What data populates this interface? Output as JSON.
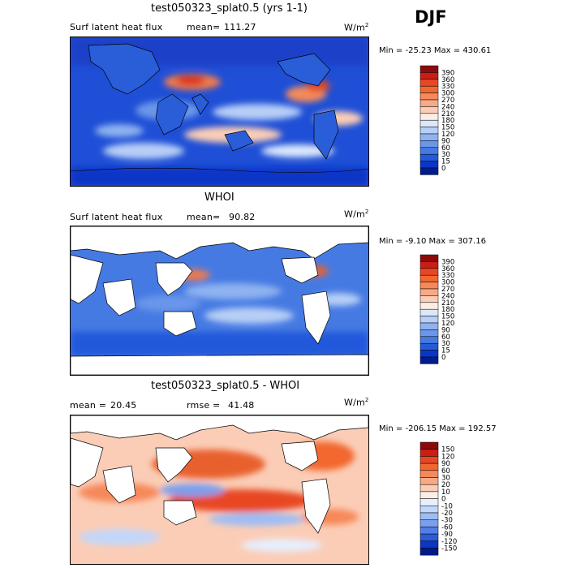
{
  "season": "DJF",
  "panels": [
    {
      "title": "test050323_splat0.5 (yrs 1-1)",
      "left_label": "Surf latent heat flux",
      "stat_label": "mean=",
      "stat_value": "111.27",
      "units": "W/m",
      "units_exp": "2",
      "minmax": "Min = -25.23 Max = 430.61"
    },
    {
      "title": "WHOI",
      "left_label": "Surf latent heat flux",
      "stat_label": "mean=",
      "stat_value": "90.82",
      "units": "W/m",
      "units_exp": "2",
      "minmax": "Min = -9.10 Max = 307.16"
    },
    {
      "title": "test050323_splat0.5 - WHOI",
      "left_label": "mean =",
      "left_value": "20.45",
      "stat_label": "rmse =",
      "stat_value": "41.48",
      "units": "W/m",
      "units_exp": "2",
      "minmax": "Min = -206.15 Max = 192.57"
    }
  ],
  "chart_data": [
    {
      "type": "heatmap",
      "title": "test050323_splat0.5 (yrs 1-1)",
      "variable": "Surf latent heat flux",
      "mean": 111.27,
      "min": -25.23,
      "max": 430.61,
      "units": "W/m2",
      "colorbar_levels": [
        "390",
        "360",
        "330",
        "300",
        "270",
        "240",
        "210",
        "180",
        "150",
        "120",
        "90",
        "60",
        "30",
        "15",
        "0"
      ],
      "colorbar_colors": [
        "#8b0a0a",
        "#c81e14",
        "#e84624",
        "#f2672f",
        "#f7885a",
        "#f9a986",
        "#fbcdb6",
        "#fdeee5",
        "#dbe8fb",
        "#b7cff6",
        "#8fb3f0",
        "#6b96ea",
        "#467ae3",
        "#2459db",
        "#0a36c8",
        "#001c8f"
      ]
    },
    {
      "type": "heatmap",
      "title": "WHOI",
      "variable": "Surf latent heat flux",
      "mean": 90.82,
      "min": -9.1,
      "max": 307.16,
      "units": "W/m2",
      "colorbar_levels": [
        "390",
        "360",
        "330",
        "300",
        "270",
        "240",
        "210",
        "180",
        "150",
        "120",
        "90",
        "60",
        "30",
        "15",
        "0"
      ],
      "colorbar_colors": [
        "#8b0a0a",
        "#c81e14",
        "#e84624",
        "#f2672f",
        "#f7885a",
        "#f9a986",
        "#fbcdb6",
        "#fdeee5",
        "#dbe8fb",
        "#b7cff6",
        "#8fb3f0",
        "#6b96ea",
        "#467ae3",
        "#2459db",
        "#0a36c8",
        "#001c8f"
      ]
    },
    {
      "type": "heatmap",
      "title": "test050323_splat0.5 - WHOI",
      "mean": 20.45,
      "rmse": 41.48,
      "min": -206.15,
      "max": 192.57,
      "units": "W/m2",
      "colorbar_levels": [
        "150",
        "120",
        "90",
        "60",
        "30",
        "20",
        "10",
        "0",
        "-10",
        "-20",
        "-30",
        "-60",
        "-90",
        "-120",
        "-150"
      ],
      "colorbar_colors": [
        "#8b0a0a",
        "#c81e14",
        "#e84624",
        "#f2672f",
        "#f7885a",
        "#f9a986",
        "#fbcdb6",
        "#fdeee5",
        "#e6efff",
        "#c3d7fb",
        "#9dbcf5",
        "#7a9fee",
        "#527fe5",
        "#2c5bd9",
        "#0d36c4",
        "#001a88"
      ]
    }
  ]
}
